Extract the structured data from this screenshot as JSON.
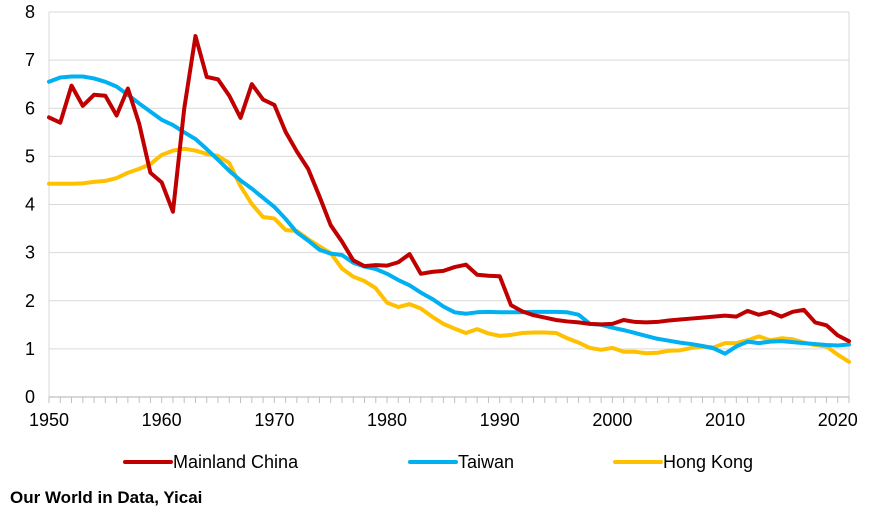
{
  "chart_data": {
    "type": "line",
    "title": "",
    "xlabel": "",
    "ylabel": "",
    "xlim": [
      1950,
      2021
    ],
    "ylim": [
      0,
      8
    ],
    "grid": "horizontal",
    "legend_position": "bottom",
    "x_ticks": [
      1950,
      1960,
      1970,
      1980,
      1990,
      2000,
      2010,
      2020
    ],
    "y_ticks": [
      0,
      1,
      2,
      3,
      4,
      5,
      6,
      7,
      8
    ],
    "x": [
      1950,
      1951,
      1952,
      1953,
      1954,
      1955,
      1956,
      1957,
      1958,
      1959,
      1960,
      1961,
      1962,
      1963,
      1964,
      1965,
      1966,
      1967,
      1968,
      1969,
      1970,
      1971,
      1972,
      1973,
      1974,
      1975,
      1976,
      1977,
      1978,
      1979,
      1980,
      1981,
      1982,
      1983,
      1984,
      1985,
      1986,
      1987,
      1988,
      1989,
      1990,
      1991,
      1992,
      1993,
      1994,
      1995,
      1996,
      1997,
      1998,
      1999,
      2000,
      2001,
      2002,
      2003,
      2004,
      2005,
      2006,
      2007,
      2008,
      2009,
      2010,
      2011,
      2012,
      2013,
      2014,
      2015,
      2016,
      2017,
      2018,
      2019,
      2020,
      2021
    ],
    "series": [
      {
        "name": "Mainland China",
        "color": "#c00000",
        "values": [
          5.81,
          5.7,
          6.47,
          6.05,
          6.28,
          6.26,
          5.85,
          6.41,
          5.68,
          4.66,
          4.46,
          3.85,
          5.99,
          7.5,
          6.65,
          6.6,
          6.26,
          5.8,
          6.5,
          6.18,
          6.07,
          5.51,
          5.1,
          4.74,
          4.17,
          3.57,
          3.23,
          2.84,
          2.72,
          2.74,
          2.73,
          2.8,
          2.97,
          2.56,
          2.6,
          2.62,
          2.7,
          2.75,
          2.54,
          2.52,
          2.51,
          1.91,
          1.78,
          1.7,
          1.65,
          1.6,
          1.57,
          1.55,
          1.52,
          1.51,
          1.52,
          1.6,
          1.56,
          1.55,
          1.56,
          1.59,
          1.61,
          1.63,
          1.65,
          1.67,
          1.69,
          1.67,
          1.79,
          1.71,
          1.77,
          1.67,
          1.77,
          1.81,
          1.55,
          1.49,
          1.28,
          1.16
        ]
      },
      {
        "name": "Taiwan",
        "color": "#00b0f0",
        "values": [
          6.55,
          6.64,
          6.66,
          6.66,
          6.62,
          6.55,
          6.45,
          6.28,
          6.1,
          5.93,
          5.76,
          5.65,
          5.5,
          5.36,
          5.15,
          4.93,
          4.7,
          4.5,
          4.33,
          4.14,
          3.95,
          3.7,
          3.42,
          3.25,
          3.06,
          2.98,
          2.95,
          2.79,
          2.71,
          2.66,
          2.56,
          2.43,
          2.32,
          2.17,
          2.04,
          1.88,
          1.76,
          1.73,
          1.76,
          1.77,
          1.76,
          1.76,
          1.76,
          1.77,
          1.77,
          1.77,
          1.76,
          1.71,
          1.52,
          1.5,
          1.44,
          1.39,
          1.33,
          1.27,
          1.21,
          1.17,
          1.13,
          1.1,
          1.06,
          1.01,
          0.9,
          1.05,
          1.15,
          1.12,
          1.15,
          1.16,
          1.14,
          1.12,
          1.1,
          1.08,
          1.07,
          1.09
        ]
      },
      {
        "name": "Hong Kong",
        "color": "#ffc000",
        "values": [
          4.43,
          4.43,
          4.43,
          4.44,
          4.47,
          4.49,
          4.55,
          4.66,
          4.74,
          4.84,
          5.03,
          5.12,
          5.16,
          5.12,
          5.05,
          5.01,
          4.86,
          4.38,
          4.01,
          3.74,
          3.71,
          3.47,
          3.45,
          3.28,
          3.13,
          2.99,
          2.67,
          2.5,
          2.41,
          2.26,
          1.96,
          1.87,
          1.93,
          1.84,
          1.67,
          1.52,
          1.42,
          1.33,
          1.41,
          1.32,
          1.27,
          1.29,
          1.33,
          1.34,
          1.34,
          1.33,
          1.22,
          1.13,
          1.02,
          0.98,
          1.02,
          0.94,
          0.94,
          0.91,
          0.92,
          0.96,
          0.97,
          1.02,
          1.05,
          1.03,
          1.12,
          1.12,
          1.18,
          1.26,
          1.18,
          1.22,
          1.2,
          1.13,
          1.08,
          1.05,
          0.88,
          0.73
        ]
      }
    ]
  },
  "source": "Our World in Data, Yicai"
}
